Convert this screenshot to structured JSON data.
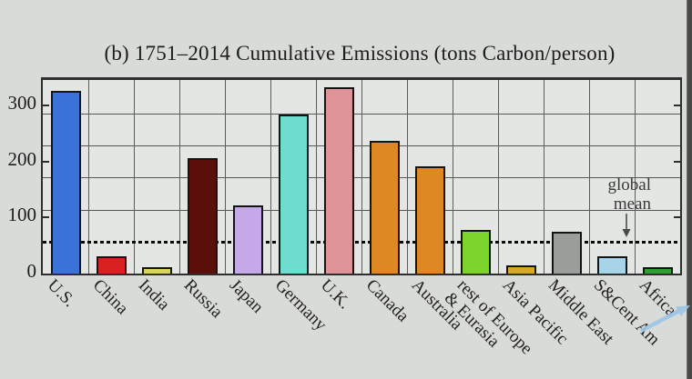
{
  "title": "(b)  1751–2014 Cumulative Emissions (tons Carbon/person)",
  "chart_data": {
    "type": "bar",
    "title": "(b) 1751–2014 Cumulative Emissions (tons Carbon/person)",
    "categories": [
      "U.S.",
      "China",
      "India",
      "Russia",
      "Japan",
      "Germany",
      "U.K.",
      "Canada",
      "Australia",
      "rest of Europe\n& Eurasia",
      "Asia Pacific",
      "Middle East",
      "S&Cent Am",
      "Africa"
    ],
    "values": [
      326,
      31,
      12,
      205,
      121,
      284,
      332,
      236,
      191,
      77,
      15,
      75,
      30,
      11
    ],
    "bar_colors": [
      "#3a72d8",
      "#d92121",
      "#d6d45a",
      "#5a0f0a",
      "#c4a8e8",
      "#6fdcd0",
      "#dd9397",
      "#dd8822",
      "#dd8822",
      "#7cd32b",
      "#d9a82a",
      "#9a9e9b",
      "#a8d4ea",
      "#2f9f35"
    ],
    "xlabel": "",
    "ylabel": "",
    "ytick_labels": [
      "0",
      "100",
      "200",
      "300"
    ],
    "yticks": [
      0,
      100,
      200,
      300
    ],
    "ylim": [
      0,
      345
    ],
    "grid_on": true,
    "hgrid_values": [
      114,
      171,
      228,
      285
    ],
    "global_mean": {
      "label": "global\nmean",
      "value": 57
    },
    "legend": "none"
  },
  "colors": {
    "page_bg": "#d9dbd8",
    "plot_bg": "#e4e6e3",
    "plot_border": "#2e2e2e",
    "gridline": "#565656",
    "mean_line": "#0a0a0a",
    "bar_outline": "#141414",
    "annotation_text": "#3a3a3a",
    "pointer_arrow": "#9cc7e6",
    "right_strip": "#4a4a48"
  },
  "decorations": {
    "pointer_arrow_icon": "cursor-arrow-pointing-upper-right",
    "right_strip": "window-edge-shadow"
  }
}
